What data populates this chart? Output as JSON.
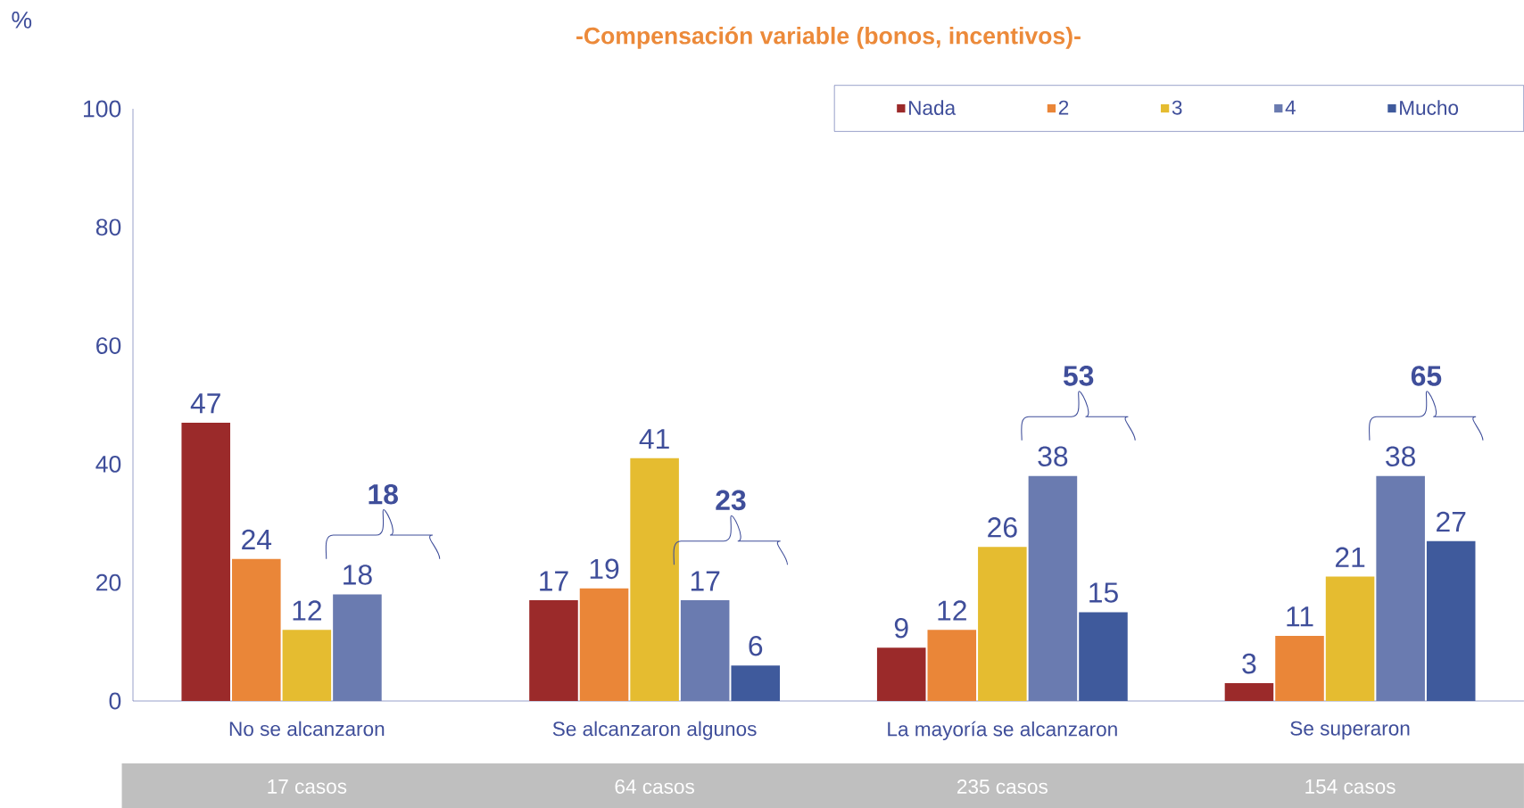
{
  "chart_data": {
    "type": "bar",
    "title": "-Compensación variable (bonos, incentivos)-",
    "ylabel": "%",
    "categories": [
      "No se alcanzaron",
      "Se alcanzaron algunos",
      "La mayoría se alcanzaron",
      "Se superaron"
    ],
    "series": [
      {
        "name": "Nada",
        "color": "#9b2a2a",
        "values": [
          47,
          17,
          9,
          3
        ]
      },
      {
        "name": "2",
        "color": "#ea8638",
        "values": [
          24,
          19,
          12,
          11
        ]
      },
      {
        "name": "3",
        "color": "#e5bc30",
        "values": [
          12,
          41,
          26,
          21
        ]
      },
      {
        "name": "4",
        "color": "#6a7bb0",
        "values": [
          18,
          17,
          38,
          38
        ]
      },
      {
        "name": "Mucho",
        "color": "#3f5a9c",
        "values": [
          null,
          6,
          15,
          27
        ]
      }
    ],
    "ylim": [
      0,
      100
    ],
    "yticks": [
      0,
      20,
      40,
      60,
      80,
      100
    ],
    "data_labels": true,
    "legend": "top right",
    "annotations": [
      "**18**",
      "**23**",
      "**53**",
      "**65**",
      "17 casos",
      "64 casos",
      "235 casos",
      "154 casos"
    ]
  }
}
